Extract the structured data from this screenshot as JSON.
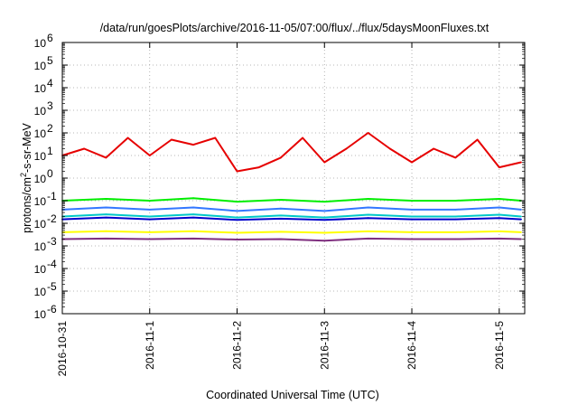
{
  "chart_data": {
    "type": "line",
    "title": "/data/run/goesPlots/archive/2016-11-05/07:00/flux/../flux/5daysMoonFluxes.txt",
    "xlabel": "Coordinated Universal Time (UTC)",
    "ylabel": {
      "base": "protons/cm",
      "sup": "2",
      "rest": "-s-sr-MeV"
    },
    "yscale": "log",
    "ylim": [
      1e-06,
      1000000.0
    ],
    "y_ticks": [
      {
        "base": "10",
        "exp": "-6",
        "value": 1e-06
      },
      {
        "base": "10",
        "exp": "-5",
        "value": 1e-05
      },
      {
        "base": "10",
        "exp": "-4",
        "value": 0.0001
      },
      {
        "base": "10",
        "exp": "-3",
        "value": 0.001
      },
      {
        "base": "10",
        "exp": "-2",
        "value": 0.01
      },
      {
        "base": "10",
        "exp": "-1",
        "value": 0.1
      },
      {
        "base": "10",
        "exp": "0",
        "value": 1
      },
      {
        "base": "10",
        "exp": "1",
        "value": 10
      },
      {
        "base": "10",
        "exp": "2",
        "value": 100
      },
      {
        "base": "10",
        "exp": "3",
        "value": 1000
      },
      {
        "base": "10",
        "exp": "4",
        "value": 10000
      },
      {
        "base": "10",
        "exp": "5",
        "value": 100000
      },
      {
        "base": "10",
        "exp": "6",
        "value": 1000000
      }
    ],
    "xlim": [
      "2016-10-31",
      "2016-11-05 07:00"
    ],
    "x_ticks": [
      "2016-10-31",
      "2016-11-1",
      "2016-11-2",
      "2016-11-3",
      "2016-11-4",
      "2016-11-5"
    ],
    "grid": true,
    "series": [
      {
        "color": "#e60000",
        "x": [
          "2016-10-31 00:00",
          "2016-10-31 06:00",
          "2016-10-31 12:00",
          "2016-10-31 18:00",
          "2016-11-01 00:00",
          "2016-11-01 06:00",
          "2016-11-01 12:00",
          "2016-11-01 18:00",
          "2016-11-02 00:00",
          "2016-11-02 06:00",
          "2016-11-02 12:00",
          "2016-11-02 18:00",
          "2016-11-03 00:00",
          "2016-11-03 06:00",
          "2016-11-03 12:00",
          "2016-11-03 18:00",
          "2016-11-04 00:00",
          "2016-11-04 06:00",
          "2016-11-04 12:00",
          "2016-11-04 18:00",
          "2016-11-05 00:00",
          "2016-11-05 06:00"
        ],
        "values": [
          10,
          20,
          8,
          60,
          10,
          50,
          30,
          60,
          2,
          3,
          8,
          60,
          5,
          20,
          100,
          20,
          5,
          20,
          8,
          50,
          3,
          5
        ]
      },
      {
        "color": "#00ee00",
        "x": [
          "2016-10-31 00:00",
          "2016-10-31 12:00",
          "2016-11-01 00:00",
          "2016-11-01 12:00",
          "2016-11-02 00:00",
          "2016-11-02 12:00",
          "2016-11-03 00:00",
          "2016-11-03 12:00",
          "2016-11-04 00:00",
          "2016-11-04 12:00",
          "2016-11-05 00:00",
          "2016-11-05 06:00"
        ],
        "values": [
          0.1,
          0.12,
          0.1,
          0.13,
          0.09,
          0.11,
          0.09,
          0.12,
          0.1,
          0.1,
          0.12,
          0.1
        ]
      },
      {
        "color": "#3377ff",
        "x": [
          "2016-10-31 00:00",
          "2016-10-31 12:00",
          "2016-11-01 00:00",
          "2016-11-01 12:00",
          "2016-11-02 00:00",
          "2016-11-02 12:00",
          "2016-11-03 00:00",
          "2016-11-03 12:00",
          "2016-11-04 00:00",
          "2016-11-04 12:00",
          "2016-11-05 00:00",
          "2016-11-05 06:00"
        ],
        "values": [
          0.04,
          0.05,
          0.04,
          0.05,
          0.035,
          0.045,
          0.035,
          0.05,
          0.04,
          0.04,
          0.05,
          0.04
        ]
      },
      {
        "color": "#00c8c8",
        "x": [
          "2016-10-31 00:00",
          "2016-10-31 12:00",
          "2016-11-01 00:00",
          "2016-11-01 12:00",
          "2016-11-02 00:00",
          "2016-11-02 12:00",
          "2016-11-03 00:00",
          "2016-11-03 12:00",
          "2016-11-04 00:00",
          "2016-11-04 12:00",
          "2016-11-05 00:00",
          "2016-11-05 06:00"
        ],
        "values": [
          0.02,
          0.025,
          0.02,
          0.025,
          0.018,
          0.022,
          0.018,
          0.024,
          0.02,
          0.02,
          0.024,
          0.02
        ]
      },
      {
        "color": "#0000cc",
        "x": [
          "2016-10-31 00:00",
          "2016-10-31 12:00",
          "2016-11-01 00:00",
          "2016-11-01 12:00",
          "2016-11-02 00:00",
          "2016-11-02 12:00",
          "2016-11-03 00:00",
          "2016-11-03 12:00",
          "2016-11-04 00:00",
          "2016-11-04 12:00",
          "2016-11-05 00:00",
          "2016-11-05 06:00"
        ],
        "values": [
          0.015,
          0.018,
          0.015,
          0.018,
          0.014,
          0.016,
          0.014,
          0.017,
          0.015,
          0.015,
          0.017,
          0.015
        ]
      },
      {
        "color": "#ffff00",
        "x": [
          "2016-10-31 00:00",
          "2016-10-31 12:00",
          "2016-11-01 00:00",
          "2016-11-01 12:00",
          "2016-11-02 00:00",
          "2016-11-02 12:00",
          "2016-11-03 00:00",
          "2016-11-03 12:00",
          "2016-11-04 00:00",
          "2016-11-04 12:00",
          "2016-11-05 00:00",
          "2016-11-05 06:00"
        ],
        "values": [
          0.004,
          0.0045,
          0.004,
          0.0045,
          0.0038,
          0.0042,
          0.0038,
          0.0044,
          0.004,
          0.004,
          0.0044,
          0.004
        ]
      },
      {
        "color": "#7f2f7f",
        "x": [
          "2016-10-31 00:00",
          "2016-10-31 12:00",
          "2016-11-01 00:00",
          "2016-11-01 12:00",
          "2016-11-02 00:00",
          "2016-11-02 12:00",
          "2016-11-03 00:00",
          "2016-11-03 12:00",
          "2016-11-04 00:00",
          "2016-11-04 12:00",
          "2016-11-05 00:00",
          "2016-11-05 06:00"
        ],
        "values": [
          0.002,
          0.0021,
          0.002,
          0.0021,
          0.0019,
          0.002,
          0.0017,
          0.0021,
          0.002,
          0.002,
          0.0021,
          0.002
        ]
      }
    ]
  }
}
